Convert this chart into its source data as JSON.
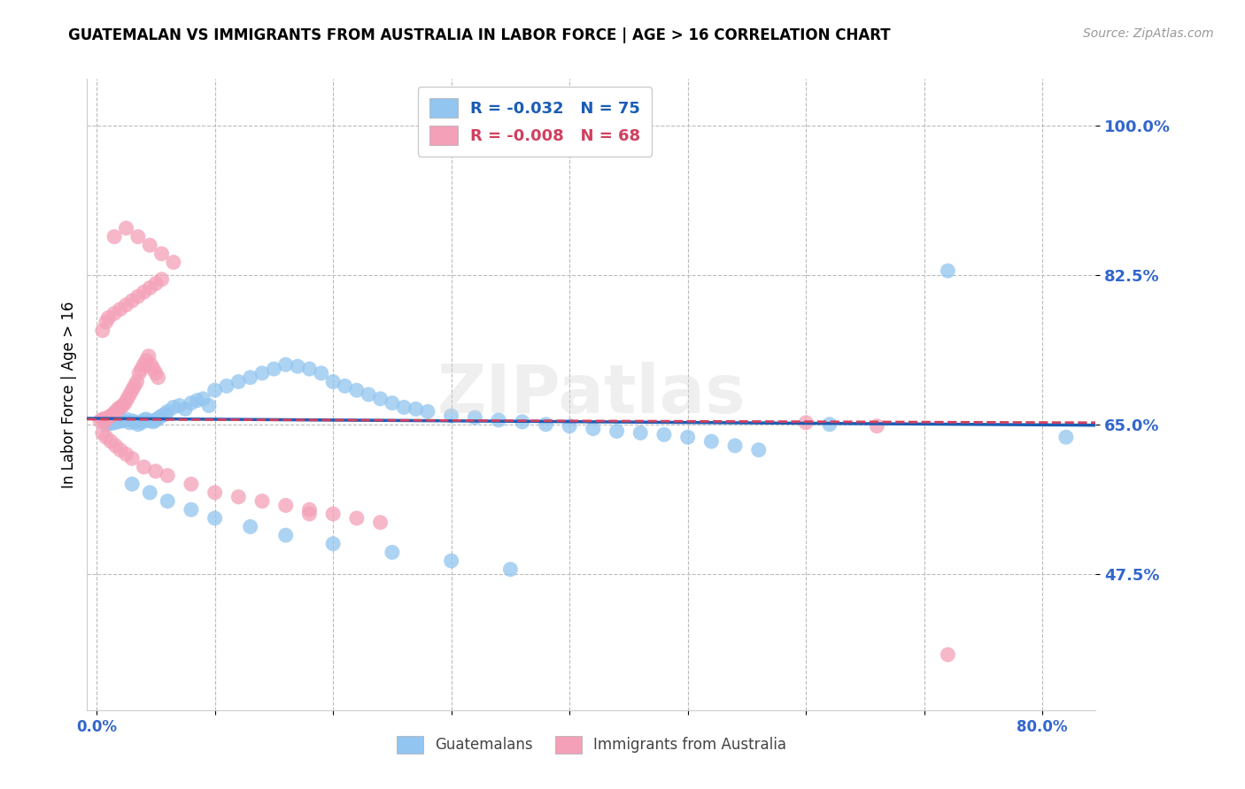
{
  "title": "GUATEMALAN VS IMMIGRANTS FROM AUSTRALIA IN LABOR FORCE | AGE > 16 CORRELATION CHART",
  "source": "Source: ZipAtlas.com",
  "ylabel": "In Labor Force | Age > 16",
  "ytick_labels": [
    "100.0%",
    "82.5%",
    "65.0%",
    "47.5%"
  ],
  "ytick_values": [
    1.0,
    0.825,
    0.65,
    0.475
  ],
  "ymin": 0.315,
  "ymax": 1.055,
  "xmin": -0.008,
  "xmax": 0.845,
  "blue_color": "#92C5F0",
  "pink_color": "#F4A0B8",
  "blue_line_color": "#1A5DB5",
  "pink_line_color": "#D04060",
  "blue_line_start_y": 0.657,
  "blue_line_end_y": 0.649,
  "pink_line_start_y": 0.656,
  "pink_line_end_y": 0.652,
  "blue_scatter_x": [
    0.008,
    0.012,
    0.015,
    0.018,
    0.02,
    0.022,
    0.025,
    0.028,
    0.03,
    0.032,
    0.035,
    0.038,
    0.04,
    0.042,
    0.045,
    0.048,
    0.05,
    0.052,
    0.055,
    0.058,
    0.06,
    0.065,
    0.07,
    0.075,
    0.08,
    0.085,
    0.09,
    0.095,
    0.1,
    0.11,
    0.12,
    0.13,
    0.14,
    0.15,
    0.16,
    0.17,
    0.18,
    0.19,
    0.2,
    0.21,
    0.22,
    0.23,
    0.24,
    0.25,
    0.26,
    0.27,
    0.28,
    0.3,
    0.32,
    0.34,
    0.36,
    0.38,
    0.4,
    0.42,
    0.44,
    0.46,
    0.48,
    0.5,
    0.52,
    0.54,
    0.56,
    0.03,
    0.045,
    0.06,
    0.08,
    0.1,
    0.13,
    0.16,
    0.2,
    0.25,
    0.3,
    0.35,
    0.62,
    0.72,
    0.82
  ],
  "blue_scatter_y": [
    0.65,
    0.651,
    0.652,
    0.653,
    0.655,
    0.654,
    0.656,
    0.652,
    0.654,
    0.653,
    0.65,
    0.652,
    0.655,
    0.656,
    0.654,
    0.653,
    0.655,
    0.657,
    0.66,
    0.662,
    0.665,
    0.67,
    0.672,
    0.668,
    0.675,
    0.678,
    0.68,
    0.672,
    0.69,
    0.695,
    0.7,
    0.705,
    0.71,
    0.715,
    0.72,
    0.718,
    0.715,
    0.71,
    0.7,
    0.695,
    0.69,
    0.685,
    0.68,
    0.675,
    0.67,
    0.668,
    0.665,
    0.66,
    0.658,
    0.655,
    0.653,
    0.65,
    0.648,
    0.645,
    0.642,
    0.64,
    0.638,
    0.635,
    0.63,
    0.625,
    0.62,
    0.58,
    0.57,
    0.56,
    0.55,
    0.54,
    0.53,
    0.52,
    0.51,
    0.5,
    0.49,
    0.48,
    0.65,
    0.83,
    0.635
  ],
  "pink_scatter_x": [
    0.003,
    0.005,
    0.007,
    0.008,
    0.01,
    0.012,
    0.014,
    0.016,
    0.018,
    0.02,
    0.022,
    0.024,
    0.026,
    0.028,
    0.03,
    0.032,
    0.034,
    0.036,
    0.038,
    0.04,
    0.042,
    0.044,
    0.046,
    0.048,
    0.05,
    0.052,
    0.005,
    0.008,
    0.01,
    0.015,
    0.02,
    0.025,
    0.03,
    0.035,
    0.04,
    0.045,
    0.05,
    0.055,
    0.005,
    0.008,
    0.012,
    0.016,
    0.02,
    0.025,
    0.03,
    0.04,
    0.05,
    0.06,
    0.08,
    0.1,
    0.12,
    0.14,
    0.16,
    0.18,
    0.2,
    0.22,
    0.24,
    0.015,
    0.025,
    0.035,
    0.045,
    0.055,
    0.065,
    0.18,
    0.6,
    0.66,
    0.72
  ],
  "pink_scatter_y": [
    0.654,
    0.656,
    0.653,
    0.657,
    0.658,
    0.66,
    0.662,
    0.665,
    0.668,
    0.67,
    0.672,
    0.675,
    0.68,
    0.685,
    0.69,
    0.695,
    0.7,
    0.71,
    0.715,
    0.72,
    0.725,
    0.73,
    0.72,
    0.715,
    0.71,
    0.705,
    0.76,
    0.77,
    0.775,
    0.78,
    0.785,
    0.79,
    0.795,
    0.8,
    0.805,
    0.81,
    0.815,
    0.82,
    0.64,
    0.635,
    0.63,
    0.625,
    0.62,
    0.615,
    0.61,
    0.6,
    0.595,
    0.59,
    0.58,
    0.57,
    0.565,
    0.56,
    0.555,
    0.55,
    0.545,
    0.54,
    0.535,
    0.87,
    0.88,
    0.87,
    0.86,
    0.85,
    0.84,
    0.545,
    0.652,
    0.648,
    0.38
  ],
  "watermark": "ZIPatlas",
  "title_fontsize": 12,
  "source_color": "#999999",
  "tick_label_color": "#3366CC",
  "grid_color": "#BBBBBB",
  "background_color": "#FFFFFF",
  "xtick_positions": [
    0.0,
    0.1,
    0.2,
    0.3,
    0.4,
    0.5,
    0.6,
    0.7,
    0.8
  ],
  "xtick_labels_show": [
    "0.0%",
    "",
    "",
    "",
    "",
    "",
    "",
    "",
    "80.0%"
  ]
}
